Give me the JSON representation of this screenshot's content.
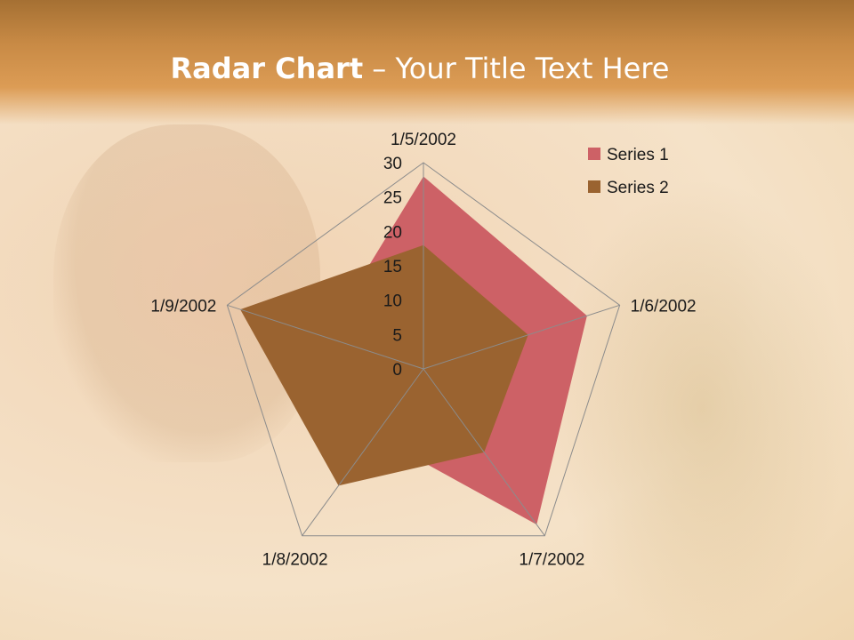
{
  "slide": {
    "title_bold": "Radar Chart",
    "title_rest": " – Your Title Text Here"
  },
  "chart_data": {
    "type": "radar",
    "categories": [
      "1/5/2002",
      "1/6/2002",
      "1/7/2002",
      "1/8/2002",
      "1/9/2002"
    ],
    "series": [
      {
        "name": "Series 1",
        "values": [
          28,
          25,
          28,
          12,
          15
        ],
        "color": "#CD6166"
      },
      {
        "name": "Series 2",
        "values": [
          18,
          16,
          15,
          21,
          28
        ],
        "color": "#9A6330"
      }
    ],
    "rlim": [
      0,
      30
    ],
    "ticks": [
      "0",
      "5",
      "10",
      "15",
      "20",
      "25",
      "30"
    ],
    "legend": "top-right",
    "grid": true
  }
}
